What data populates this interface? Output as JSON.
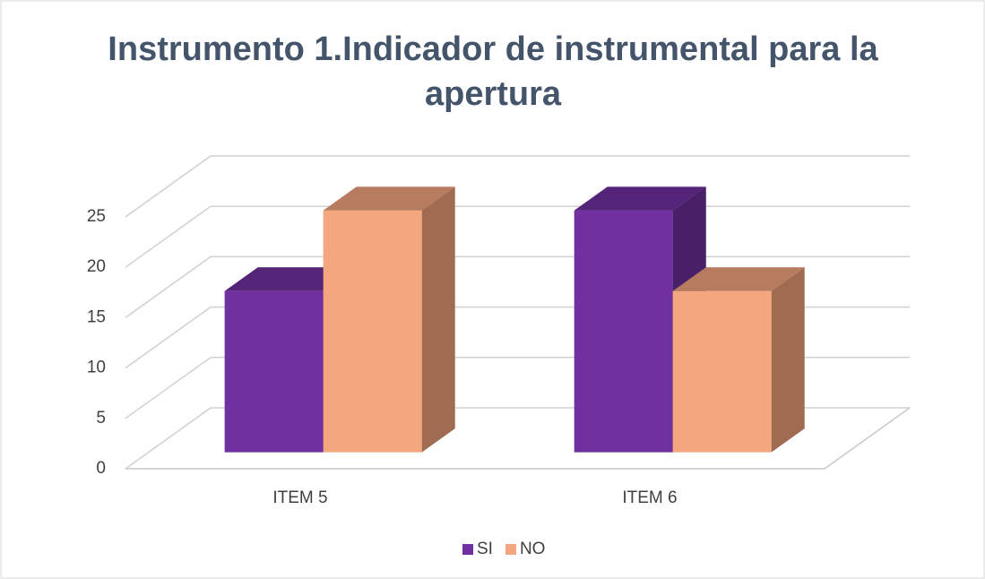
{
  "chart_data": {
    "type": "bar3d",
    "title": "Instrumento 1.Indicador de instrumental para la apertura",
    "categories": [
      "ITEM 5",
      "ITEM 6"
    ],
    "series": [
      {
        "name": "SI",
        "color": "#7030a0",
        "values": [
          16,
          24
        ]
      },
      {
        "name": "NO",
        "color": "#f4a67f",
        "values": [
          24,
          16
        ]
      }
    ],
    "ylim": [
      0,
      25
    ],
    "yticks": [
      0,
      5,
      10,
      15,
      20,
      25
    ],
    "grid": true,
    "legend": "bottom"
  }
}
